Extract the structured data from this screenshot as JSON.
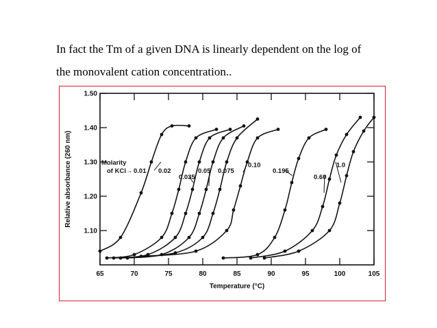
{
  "caption": {
    "line1": "In fact the Tm of a given DNA is linearly dependent on the log of",
    "line2": "the monovalent cation concentration.."
  },
  "colors": {
    "frame": "#d21f2a",
    "curve": "#111111"
  },
  "chart_data": {
    "type": "line",
    "title": "",
    "xlabel": "Temperature (°C)",
    "ylabel": "Relative absorbance (260 nm)",
    "xlim": [
      65,
      105
    ],
    "ylim": [
      1.0,
      1.5
    ],
    "x_ticks": [
      "65",
      "70",
      "75",
      "80",
      "85",
      "90",
      "95",
      "100",
      "105"
    ],
    "y_ticks": [
      "1.50",
      "1.40",
      "1.30",
      "1.20",
      "1.10"
    ],
    "grid": false,
    "legend_title": "Molarity of KCl",
    "series": [
      {
        "name": "0.01",
        "x": [
          65,
          68,
          71,
          72.5,
          74,
          75.5,
          78
        ],
        "y": [
          1.04,
          1.08,
          1.21,
          1.3,
          1.38,
          1.405,
          1.405
        ]
      },
      {
        "name": "0.02",
        "x": [
          66,
          70,
          74,
          75.5,
          76.5,
          77.5,
          79,
          82
        ],
        "y": [
          1.02,
          1.03,
          1.08,
          1.15,
          1.22,
          1.3,
          1.37,
          1.395
        ]
      },
      {
        "name": "0.035",
        "x": [
          67,
          72,
          76,
          77.5,
          78.5,
          79.5,
          81,
          84
        ],
        "y": [
          1.02,
          1.03,
          1.08,
          1.15,
          1.22,
          1.3,
          1.37,
          1.395
        ]
      },
      {
        "name": "0.05",
        "x": [
          68,
          74,
          78,
          79.5,
          80.5,
          81.5,
          83,
          86
        ],
        "y": [
          1.02,
          1.03,
          1.08,
          1.15,
          1.22,
          1.3,
          1.37,
          1.405
        ]
      },
      {
        "name": "0.075",
        "x": [
          69,
          76,
          80,
          81.5,
          82.5,
          83.5,
          85,
          88
        ],
        "y": [
          1.02,
          1.035,
          1.08,
          1.15,
          1.22,
          1.3,
          1.37,
          1.425
        ]
      },
      {
        "name": "0.10",
        "x": [
          71,
          79,
          83.5,
          84.5,
          85.5,
          86.5,
          88,
          91
        ],
        "y": [
          1.025,
          1.04,
          1.1,
          1.16,
          1.23,
          1.3,
          1.37,
          1.395
        ]
      },
      {
        "name": "0.195",
        "x": [
          83,
          88,
          90.5,
          92,
          93,
          94,
          95.5,
          98
        ],
        "y": [
          1.02,
          1.03,
          1.08,
          1.16,
          1.24,
          1.31,
          1.37,
          1.395
        ]
      },
      {
        "name": "0.60",
        "x": [
          87,
          92,
          96,
          97.5,
          98.5,
          99.5,
          101,
          103
        ],
        "y": [
          1.02,
          1.04,
          1.1,
          1.17,
          1.25,
          1.32,
          1.38,
          1.43
        ]
      },
      {
        "name": "1.0",
        "x": [
          89,
          94,
          98.5,
          100,
          101,
          102,
          103.5,
          105
        ],
        "y": [
          1.02,
          1.04,
          1.1,
          1.18,
          1.26,
          1.33,
          1.39,
          1.43
        ]
      }
    ],
    "annotations": [
      {
        "text": "Molarity",
        "series": "legend"
      },
      {
        "text": "of KCl→",
        "series": "legend"
      },
      {
        "text": "0.01",
        "series": "0.01"
      },
      {
        "text": "0.02",
        "series": "0.02"
      },
      {
        "text": "0.035",
        "series": "0.035"
      },
      {
        "text": "0.05",
        "series": "0.05"
      },
      {
        "text": "0.075",
        "series": "0.075"
      },
      {
        "text": "0.10",
        "series": "0.10"
      },
      {
        "text": "0.195",
        "series": "0.195"
      },
      {
        "text": "0.60",
        "series": "0.60"
      },
      {
        "text": "1.0",
        "series": "1.0"
      }
    ]
  }
}
